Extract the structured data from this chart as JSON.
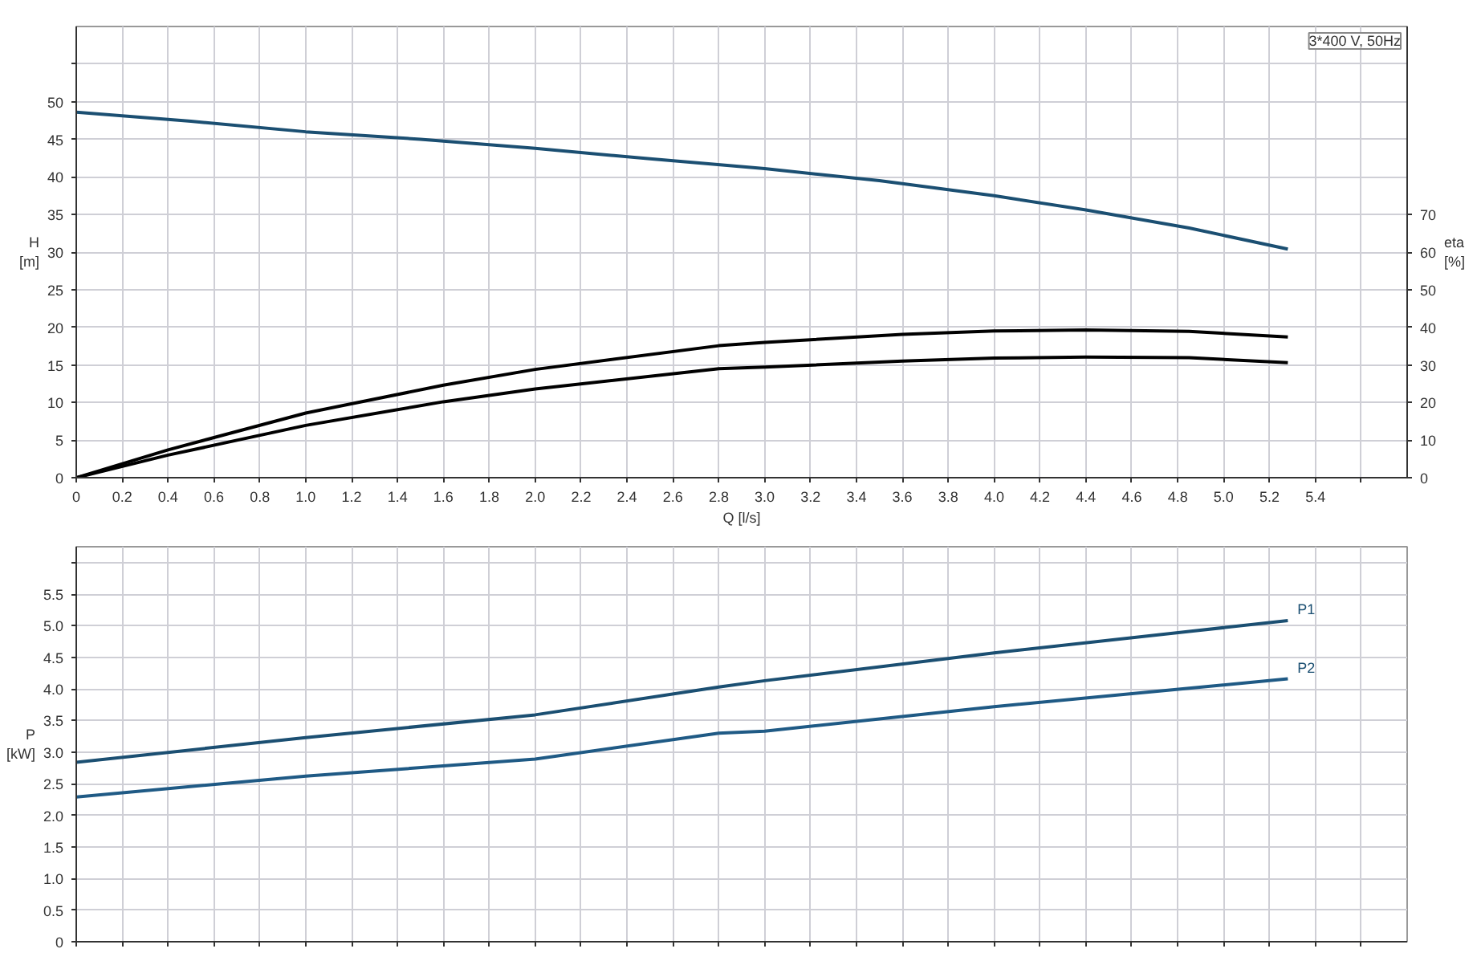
{
  "chart_data": [
    {
      "type": "line",
      "ylabel": "H [m]",
      "y2label": "eta [%]",
      "xlabel": "Q [l/s]",
      "annotations": [
        "3*400 V, 50Hz"
      ],
      "xlim": [
        0,
        5.8
      ],
      "ylim": [
        0,
        60
      ],
      "y2lim": [
        0,
        120
      ],
      "xticks": [
        0,
        0.2,
        0.4,
        0.6,
        0.8,
        {
          "value": 1,
          "label": "1.0"
        },
        1.2,
        1.4,
        1.6,
        1.8,
        {
          "value": 2,
          "label": "2.0"
        },
        2.2,
        2.4,
        2.6,
        2.8,
        {
          "value": 3,
          "label": "3.0"
        },
        3.2,
        3.4,
        3.6,
        3.8,
        {
          "value": 4,
          "label": "4.0"
        },
        4.2,
        4.4,
        4.6,
        4.8,
        {
          "value": 5,
          "label": "5.0"
        },
        5.2,
        5.4,
        {
          "value": 5.6,
          "label": null
        }
      ],
      "yticks": [
        0,
        5,
        10,
        15,
        20,
        25,
        30,
        35,
        40,
        45,
        50,
        {
          "value": 55,
          "label": null
        }
      ],
      "y2ticks": [
        0,
        10,
        20,
        30,
        40,
        50,
        60,
        70
      ],
      "grid": true,
      "marker": "none",
      "line_style": "solid",
      "series": [
        {
          "color": "#1b4f72",
          "x": [
            0,
            0.5,
            1.0,
            1.5,
            2.0,
            2.5,
            3.0,
            3.5,
            4.0,
            4.4,
            4.85,
            5.28
          ],
          "values": [
            48.6,
            47.4,
            46.0,
            45.0,
            43.8,
            42.4,
            41.1,
            39.5,
            37.5,
            35.6,
            33.2,
            30.4
          ]
        },
        {
          "color": "#000000",
          "axis": "y2",
          "x": [
            0,
            0.4,
            1.0,
            1.6,
            2.0,
            2.8,
            3.0,
            3.6,
            4.0,
            4.4,
            4.85,
            5.28
          ],
          "values": [
            0,
            7.4,
            17.2,
            24.6,
            28.8,
            35.1,
            36.0,
            38.1,
            39.0,
            39.3,
            38.9,
            37.4
          ]
        },
        {
          "color": "#000000",
          "axis": "y2",
          "x": [
            0,
            0.4,
            1.0,
            1.6,
            2.0,
            2.8,
            3.0,
            3.6,
            4.0,
            4.4,
            4.85,
            5.28
          ],
          "values": [
            0,
            6.0,
            13.9,
            20.2,
            23.6,
            29.0,
            29.4,
            31.0,
            31.8,
            32.1,
            31.9,
            30.6
          ]
        }
      ]
    },
    {
      "type": "line",
      "ylabel": "P [kW]",
      "tick_labels": "y",
      "xlim": [
        0,
        5.8
      ],
      "ylim": [
        0,
        6.25
      ],
      "xticks": [
        0,
        0.2,
        0.4,
        0.6,
        0.8,
        1,
        1.2,
        1.4,
        1.6,
        1.8,
        2,
        2.2,
        2.4,
        2.6,
        2.8,
        3,
        3.2,
        3.4,
        3.6,
        3.8,
        4,
        4.2,
        4.4,
        4.6,
        4.8,
        5,
        5.2,
        5.4,
        5.6
      ],
      "yticks": [
        0,
        0.5,
        {
          "value": 1,
          "label": "1.0"
        },
        1.5,
        {
          "value": 2,
          "label": "2.0"
        },
        2.5,
        {
          "value": 3,
          "label": "3.0"
        },
        3.5,
        {
          "value": 4,
          "label": "4.0"
        },
        4.5,
        {
          "value": 5,
          "label": "5.0"
        },
        5.5,
        {
          "value": 6,
          "label": null
        }
      ],
      "grid": true,
      "marker": "none",
      "line_style": "solid",
      "series": [
        {
          "name": "P1",
          "color": "#1b4f72",
          "x": [
            0,
            1.0,
            2.0,
            2.8,
            3.0,
            4.0,
            4.85,
            5.28
          ],
          "values": [
            2.84,
            3.23,
            3.59,
            4.03,
            4.13,
            4.57,
            4.91,
            5.08
          ]
        },
        {
          "name": "P2",
          "color": "#1f5a85",
          "x": [
            0,
            1.0,
            2.0,
            2.8,
            3.0,
            4.0,
            4.85,
            5.28
          ],
          "values": [
            2.29,
            2.62,
            2.89,
            3.3,
            3.33,
            3.72,
            4.01,
            4.16
          ]
        }
      ]
    }
  ]
}
